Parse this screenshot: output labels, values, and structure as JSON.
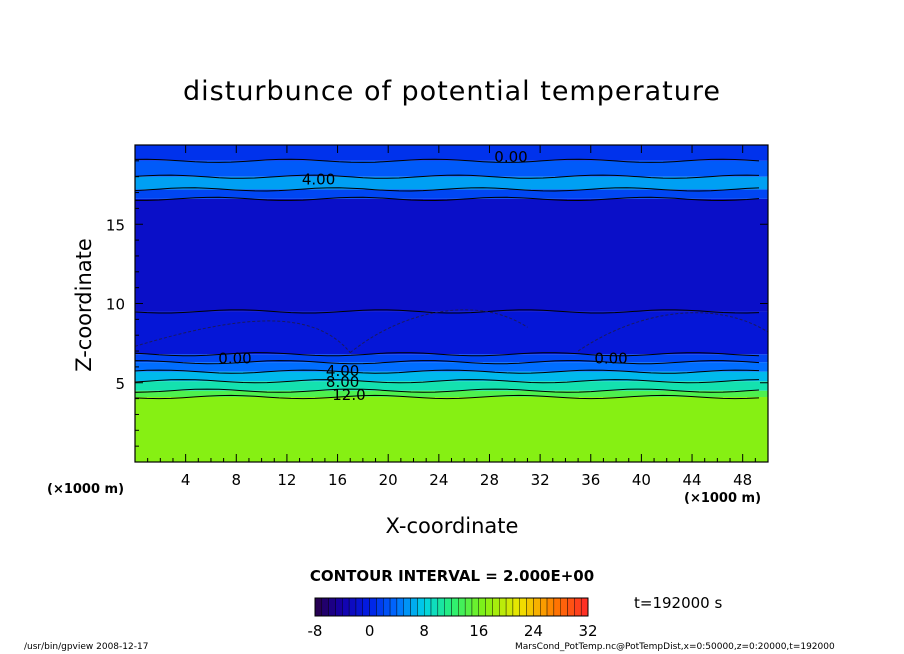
{
  "chart_data": {
    "type": "heatmap",
    "title": "disturbunce of potential temperature",
    "xlabel": "X-coordinate",
    "ylabel": "Z-coordinate",
    "x_unit_left": "(×1000 m)",
    "x_unit_right": "(×1000 m)",
    "xlim": [
      0,
      50
    ],
    "ylim": [
      0,
      20
    ],
    "xticks": [
      4,
      8,
      12,
      16,
      20,
      24,
      28,
      32,
      36,
      40,
      44,
      48
    ],
    "yticks": [
      5,
      10,
      15
    ],
    "contour_interval_text": "CONTOUR INTERVAL = 2.000E+00",
    "time_text": "t=192000 s",
    "colorbar": {
      "min": -8,
      "max": 32,
      "step": 1,
      "ticks": [
        -8,
        0,
        8,
        16,
        24,
        32
      ]
    },
    "contour_labels": [
      {
        "text": "0.00",
        "x": 29.7,
        "z": 19.3
      },
      {
        "text": "4.00",
        "x": 14.5,
        "z": 17.9
      },
      {
        "text": "0.00",
        "x": 7.9,
        "z": 6.6
      },
      {
        "text": "0.00",
        "x": 37.6,
        "z": 6.6
      },
      {
        "text": "4.00",
        "x": 16.4,
        "z": 5.8
      },
      {
        "text": "8.00",
        "x": 16.4,
        "z": 5.1
      },
      {
        "text": "12.0",
        "x": 16.9,
        "z": 4.3
      }
    ],
    "bands": [
      {
        "z0": 0.0,
        "z1": 4.1,
        "value": 17
      },
      {
        "z0": 4.1,
        "z1": 4.5,
        "value": 14
      },
      {
        "z0": 4.5,
        "z1": 5.1,
        "value": 10
      },
      {
        "z0": 5.1,
        "z1": 5.7,
        "value": 7
      },
      {
        "z0": 5.7,
        "z1": 6.3,
        "value": 4
      },
      {
        "z0": 6.3,
        "z1": 6.8,
        "value": 2
      },
      {
        "z0": 6.8,
        "z1": 9.5,
        "value": -1
      },
      {
        "z0": 9.5,
        "z1": 16.6,
        "value": -2
      },
      {
        "z0": 16.6,
        "z1": 17.2,
        "value": 2
      },
      {
        "z0": 17.2,
        "z1": 18.0,
        "value": 6
      },
      {
        "z0": 18.0,
        "z1": 19.0,
        "value": 3
      },
      {
        "z0": 19.0,
        "z1": 20.0,
        "value": 1
      }
    ]
  },
  "footer": {
    "left": "/usr/bin/gpview   2008-12-17",
    "right": "MarsCond_PotTemp.nc@PotTempDist,x=0:50000,z=0:20000,t=192000"
  }
}
